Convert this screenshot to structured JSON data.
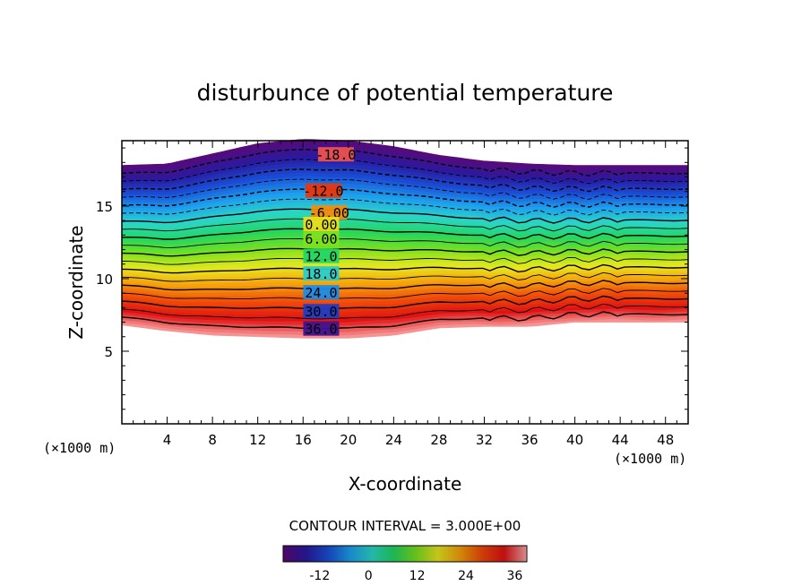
{
  "chart_data": {
    "type": "contour",
    "title": "disturbunce of potential temperature",
    "xlabel": "X-coordinate",
    "ylabel": "Z-coordinate",
    "x_unit": "(×1000 m)",
    "x_unit_right": "(×1000 m)",
    "xlim": [
      0,
      50
    ],
    "ylim": [
      0,
      19.5
    ],
    "x_ticks": [
      4,
      8,
      12,
      16,
      20,
      24,
      28,
      32,
      36,
      40,
      44,
      48
    ],
    "y_ticks": [
      5,
      10,
      15
    ],
    "contour_interval_text": "CONTOUR INTERVAL = 3.000E+00",
    "contour_interval": 3.0,
    "levels_min": -21,
    "levels_max": 39,
    "upper_boundary_z": [
      [
        0,
        17.8
      ],
      [
        4,
        17.9
      ],
      [
        8,
        18.6
      ],
      [
        12,
        19.3
      ],
      [
        16,
        19.6
      ],
      [
        20,
        19.5
      ],
      [
        24,
        19.1
      ],
      [
        28,
        18.5
      ],
      [
        32,
        18.1
      ],
      [
        36,
        17.9
      ],
      [
        40,
        17.8
      ],
      [
        44,
        17.8
      ],
      [
        48,
        17.8
      ],
      [
        50,
        17.8
      ]
    ],
    "lower_boundary_z": [
      [
        0,
        6.8
      ],
      [
        4,
        6.4
      ],
      [
        8,
        6.1
      ],
      [
        12,
        6.0
      ],
      [
        16,
        5.9
      ],
      [
        20,
        5.9
      ],
      [
        24,
        6.1
      ],
      [
        28,
        6.6
      ],
      [
        32,
        6.7
      ],
      [
        36,
        6.7
      ],
      [
        40,
        7.0
      ],
      [
        44,
        7.0
      ],
      [
        48,
        7.0
      ],
      [
        50,
        7.0
      ]
    ],
    "contour_labels": [
      {
        "text": "-18.0",
        "value": -18,
        "x": 18.9,
        "z": 18.5
      },
      {
        "text": "-12.0",
        "value": -12,
        "x": 17.8,
        "z": 16.0
      },
      {
        "text": "-6.00",
        "value": -6,
        "x": 18.3,
        "z": 14.5
      },
      {
        "text": "0.00",
        "value": 0,
        "x": 17.6,
        "z": 13.7
      },
      {
        "text": "6.00",
        "value": 6,
        "x": 17.6,
        "z": 12.7
      },
      {
        "text": "12.0",
        "value": 12,
        "x": 17.6,
        "z": 11.5
      },
      {
        "text": "18.0",
        "value": 18,
        "x": 17.6,
        "z": 10.3
      },
      {
        "text": "24.0",
        "value": 24,
        "x": 17.6,
        "z": 9.0
      },
      {
        "text": "30.0",
        "value": 30,
        "x": 17.6,
        "z": 7.7
      },
      {
        "text": "36.0",
        "value": 36,
        "x": 17.6,
        "z": 6.5
      }
    ],
    "colorbar": {
      "min": -21,
      "max": 39,
      "tick_labels": [
        "-12",
        "0",
        "12",
        "24",
        "36"
      ],
      "tick_values": [
        -12,
        0,
        12,
        24,
        36
      ],
      "colors": [
        "#5a0a78",
        "#2a1aa0",
        "#1a4fd6",
        "#1ea0ee",
        "#2ad6c8",
        "#22d660",
        "#7ae01e",
        "#e8e81e",
        "#f5a00c",
        "#f04a0a",
        "#e01212",
        "#f7a0a0"
      ]
    },
    "legend": "none",
    "grid": false
  }
}
